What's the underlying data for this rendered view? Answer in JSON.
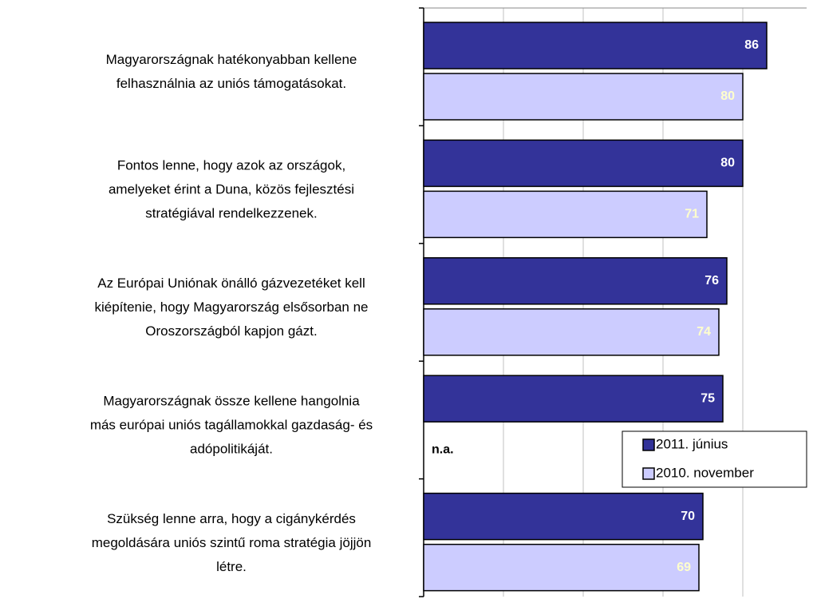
{
  "chart_data": {
    "type": "bar",
    "orientation": "horizontal",
    "categories": [
      [
        "Magyarországnak hatékonyabban kellene",
        "felhasználnia az uniós támogatásokat."
      ],
      [
        "Fontos lenne, hogy azok az országok,",
        "amelyeket érint a Duna, közös fejlesztési",
        "stratégiával rendelkezzenek."
      ],
      [
        "Az Európai Uniónak önálló gázvezetéket kell",
        "kiépítenie, hogy Magyarország elsősorban ne",
        "Oroszországból kapjon gázt."
      ],
      [
        "Magyarországnak össze kellene hangolnia",
        "más európai uniós tagállamokkal gazdaság- és",
        "adópolitikáját."
      ],
      [
        "Szükség lenne arra, hogy a cigánykérdés",
        "megoldására uniós szintű roma stratégia jöjjön",
        "létre."
      ]
    ],
    "series": [
      {
        "name": "2011. június",
        "color": "#333399",
        "label_color": "#ffffff",
        "values": [
          86,
          80,
          76,
          75,
          70
        ]
      },
      {
        "name": "2010. november",
        "color": "#ccccff",
        "label_color": "#ffffcc",
        "values": [
          80,
          71,
          74,
          null,
          69
        ]
      }
    ],
    "annotations": [
      {
        "text": "n.a."
      }
    ],
    "xlim": [
      0,
      96
    ],
    "xgrid": [
      20,
      40,
      60,
      80,
      96
    ],
    "legend": "lower right"
  }
}
